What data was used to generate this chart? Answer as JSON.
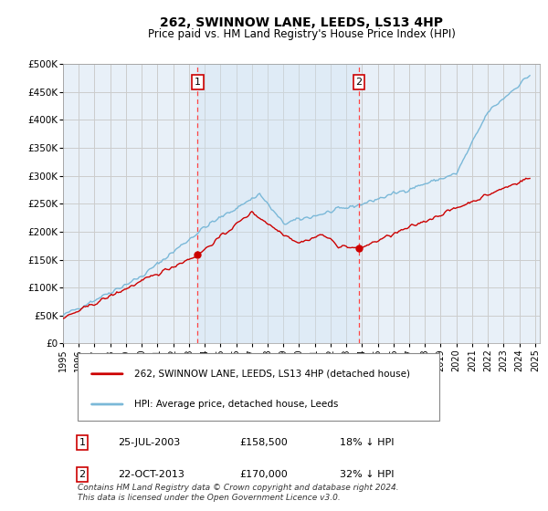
{
  "title": "262, SWINNOW LANE, LEEDS, LS13 4HP",
  "subtitle": "Price paid vs. HM Land Registry's House Price Index (HPI)",
  "title_fontsize": 10,
  "subtitle_fontsize": 8.5,
  "background_color": "#ffffff",
  "plot_bg_color": "#e8f0f8",
  "plot_bg_color2": "#d0e4f4",
  "grid_color": "#cccccc",
  "ylim": [
    0,
    500000
  ],
  "yticks": [
    0,
    50000,
    100000,
    150000,
    200000,
    250000,
    300000,
    350000,
    400000,
    450000,
    500000
  ],
  "ytick_labels": [
    "£0",
    "£50K",
    "£100K",
    "£150K",
    "£200K",
    "£250K",
    "£300K",
    "£350K",
    "£400K",
    "£450K",
    "£500K"
  ],
  "xlim_start": 1995.0,
  "xlim_end": 2025.3,
  "marker1_x": 2003.56,
  "marker1_label": "1",
  "marker1_price": 158500,
  "marker1_date": "25-JUL-2003",
  "marker1_hpi_diff": "18% ↓ HPI",
  "marker2_x": 2013.81,
  "marker2_label": "2",
  "marker2_price": 170000,
  "marker2_date": "22-OCT-2013",
  "marker2_hpi_diff": "32% ↓ HPI",
  "hpi_color": "#7ab8d8",
  "property_color": "#cc0000",
  "vline_color": "#ff4444",
  "legend_label_property": "262, SWINNOW LANE, LEEDS, LS13 4HP (detached house)",
  "legend_label_hpi": "HPI: Average price, detached house, Leeds",
  "footer_text": "Contains HM Land Registry data © Crown copyright and database right 2024.\nThis data is licensed under the Open Government Licence v3.0."
}
